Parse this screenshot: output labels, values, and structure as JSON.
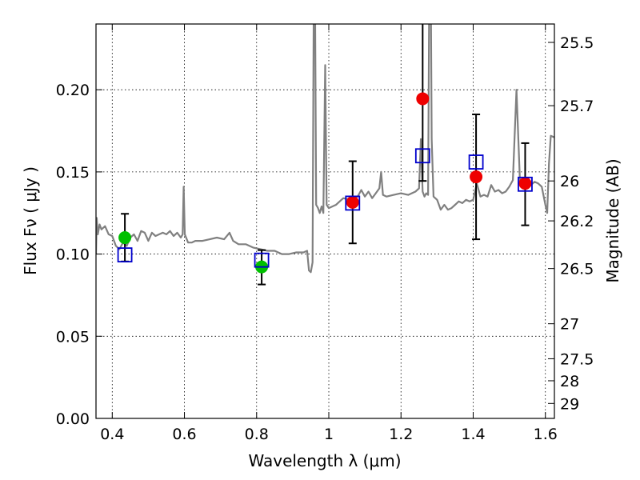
{
  "chart_data": {
    "type": "scatter",
    "xlabel": "Wavelength  λ (μm)",
    "ylabel": "Flux  Fν  ( μJy )",
    "y2label": "Magnitude (AB)",
    "xlim": [
      0.355,
      1.625
    ],
    "ylim": [
      0.0,
      0.24
    ],
    "grid": true,
    "x_ticks": [
      0.4,
      0.6,
      0.8,
      1.0,
      1.2,
      1.4,
      1.6
    ],
    "x_tick_labels": [
      "0.4",
      "0.6",
      "0.8",
      "1",
      "1.2",
      "1.4",
      "1.6"
    ],
    "y_ticks": [
      0.0,
      0.05,
      0.1,
      0.15,
      0.2
    ],
    "y_tick_labels": [
      "0.00",
      "0.05",
      "0.10",
      "0.15",
      "0.20"
    ],
    "y2_ticks": [
      {
        "label": "25.5",
        "flux": 0.2288
      },
      {
        "label": "25.7",
        "flux": 0.1903
      },
      {
        "label": "26",
        "flux": 0.1445
      },
      {
        "label": "26.2",
        "flux": 0.1202
      },
      {
        "label": "26.5",
        "flux": 0.0912
      },
      {
        "label": "27",
        "flux": 0.0576
      },
      {
        "label": "27.5",
        "flux": 0.0363
      },
      {
        "label": "28",
        "flux": 0.0229
      },
      {
        "label": "29",
        "flux": 0.0091
      }
    ],
    "colors": {
      "spectrum": "#808080",
      "green": "#00c000",
      "red": "#ee0000",
      "model_box": "#0000cc",
      "errorbar": "#000000"
    },
    "series": [
      {
        "type": "line",
        "points": [
          [
            0.355,
            0.1
          ],
          [
            0.357,
            0.122
          ],
          [
            0.36,
            0.112
          ],
          [
            0.365,
            0.118
          ],
          [
            0.37,
            0.115
          ],
          [
            0.38,
            0.117
          ],
          [
            0.39,
            0.112
          ],
          [
            0.4,
            0.111
          ],
          [
            0.41,
            0.105
          ],
          [
            0.42,
            0.103
          ],
          [
            0.43,
            0.107
          ],
          [
            0.44,
            0.105
          ],
          [
            0.45,
            0.11
          ],
          [
            0.46,
            0.112
          ],
          [
            0.47,
            0.108
          ],
          [
            0.48,
            0.114
          ],
          [
            0.49,
            0.113
          ],
          [
            0.5,
            0.108
          ],
          [
            0.51,
            0.113
          ],
          [
            0.52,
            0.111
          ],
          [
            0.53,
            0.112
          ],
          [
            0.54,
            0.113
          ],
          [
            0.55,
            0.112
          ],
          [
            0.56,
            0.114
          ],
          [
            0.57,
            0.111
          ],
          [
            0.58,
            0.113
          ],
          [
            0.59,
            0.11
          ],
          [
            0.595,
            0.112
          ],
          [
            0.598,
            0.141
          ],
          [
            0.601,
            0.112
          ],
          [
            0.61,
            0.107
          ],
          [
            0.62,
            0.107
          ],
          [
            0.63,
            0.108
          ],
          [
            0.65,
            0.108
          ],
          [
            0.67,
            0.109
          ],
          [
            0.69,
            0.11
          ],
          [
            0.71,
            0.109
          ],
          [
            0.725,
            0.113
          ],
          [
            0.735,
            0.108
          ],
          [
            0.75,
            0.106
          ],
          [
            0.77,
            0.106
          ],
          [
            0.79,
            0.104
          ],
          [
            0.81,
            0.103
          ],
          [
            0.83,
            0.102
          ],
          [
            0.85,
            0.102
          ],
          [
            0.87,
            0.1
          ],
          [
            0.89,
            0.1
          ],
          [
            0.91,
            0.101
          ],
          [
            0.93,
            0.101
          ],
          [
            0.94,
            0.102
          ],
          [
            0.945,
            0.09
          ],
          [
            0.95,
            0.089
          ],
          [
            0.955,
            0.095
          ],
          [
            0.958,
            0.245
          ],
          [
            0.962,
            0.245
          ],
          [
            0.965,
            0.13
          ],
          [
            0.97,
            0.128
          ],
          [
            0.975,
            0.125
          ],
          [
            0.98,
            0.129
          ],
          [
            0.985,
            0.125
          ],
          [
            0.99,
            0.215
          ],
          [
            0.994,
            0.13
          ],
          [
            1.0,
            0.128
          ],
          [
            1.02,
            0.13
          ],
          [
            1.04,
            0.134
          ],
          [
            1.06,
            0.133
          ],
          [
            1.08,
            0.135
          ],
          [
            1.09,
            0.139
          ],
          [
            1.1,
            0.135
          ],
          [
            1.11,
            0.138
          ],
          [
            1.12,
            0.134
          ],
          [
            1.13,
            0.137
          ],
          [
            1.14,
            0.14
          ],
          [
            1.145,
            0.15
          ],
          [
            1.15,
            0.136
          ],
          [
            1.16,
            0.135
          ],
          [
            1.18,
            0.136
          ],
          [
            1.2,
            0.137
          ],
          [
            1.22,
            0.136
          ],
          [
            1.24,
            0.138
          ],
          [
            1.25,
            0.14
          ],
          [
            1.255,
            0.17
          ],
          [
            1.26,
            0.138
          ],
          [
            1.265,
            0.135
          ],
          [
            1.27,
            0.137
          ],
          [
            1.275,
            0.136
          ],
          [
            1.278,
            0.245
          ],
          [
            1.283,
            0.245
          ],
          [
            1.285,
            0.17
          ],
          [
            1.29,
            0.135
          ],
          [
            1.3,
            0.133
          ],
          [
            1.31,
            0.127
          ],
          [
            1.32,
            0.13
          ],
          [
            1.33,
            0.127
          ],
          [
            1.34,
            0.128
          ],
          [
            1.35,
            0.13
          ],
          [
            1.36,
            0.132
          ],
          [
            1.37,
            0.131
          ],
          [
            1.38,
            0.133
          ],
          [
            1.39,
            0.132
          ],
          [
            1.4,
            0.133
          ],
          [
            1.41,
            0.143
          ],
          [
            1.42,
            0.135
          ],
          [
            1.43,
            0.136
          ],
          [
            1.44,
            0.135
          ],
          [
            1.45,
            0.142
          ],
          [
            1.46,
            0.138
          ],
          [
            1.47,
            0.139
          ],
          [
            1.48,
            0.137
          ],
          [
            1.49,
            0.138
          ],
          [
            1.5,
            0.141
          ],
          [
            1.51,
            0.145
          ],
          [
            1.52,
            0.2
          ],
          [
            1.53,
            0.142
          ],
          [
            1.54,
            0.14
          ],
          [
            1.55,
            0.14
          ],
          [
            1.56,
            0.142
          ],
          [
            1.57,
            0.144
          ],
          [
            1.58,
            0.143
          ],
          [
            1.59,
            0.141
          ],
          [
            1.6,
            0.13
          ],
          [
            1.605,
            0.125
          ],
          [
            1.61,
            0.155
          ],
          [
            1.615,
            0.172
          ],
          [
            1.625,
            0.171
          ]
        ]
      },
      {
        "type": "scatter",
        "points": [
          {
            "x": 0.435,
            "y": 0.11,
            "err": [
              0.0955,
              0.1245
            ],
            "color": "green"
          },
          {
            "x": 0.814,
            "y": 0.0922,
            "err": [
              0.0815,
              0.1024
            ],
            "color": "green"
          },
          {
            "x": 1.066,
            "y": 0.1315,
            "err": [
              0.1065,
              0.1565
            ],
            "color": "red"
          },
          {
            "x": 1.26,
            "y": 0.1945,
            "err": [
              0.1445,
              0.245
            ],
            "color": "red"
          },
          {
            "x": 1.408,
            "y": 0.147,
            "err": [
              0.109,
              0.185
            ],
            "color": "red"
          },
          {
            "x": 1.544,
            "y": 0.143,
            "err": [
              0.1175,
              0.1675
            ],
            "color": "red"
          }
        ]
      },
      {
        "type": "scatter",
        "marker": "open-square",
        "points": [
          {
            "x": 0.435,
            "y": 0.0995
          },
          {
            "x": 0.814,
            "y": 0.0963
          },
          {
            "x": 1.066,
            "y": 0.131
          },
          {
            "x": 1.26,
            "y": 0.1598
          },
          {
            "x": 1.408,
            "y": 0.156
          },
          {
            "x": 1.544,
            "y": 0.1425
          }
        ]
      }
    ]
  }
}
